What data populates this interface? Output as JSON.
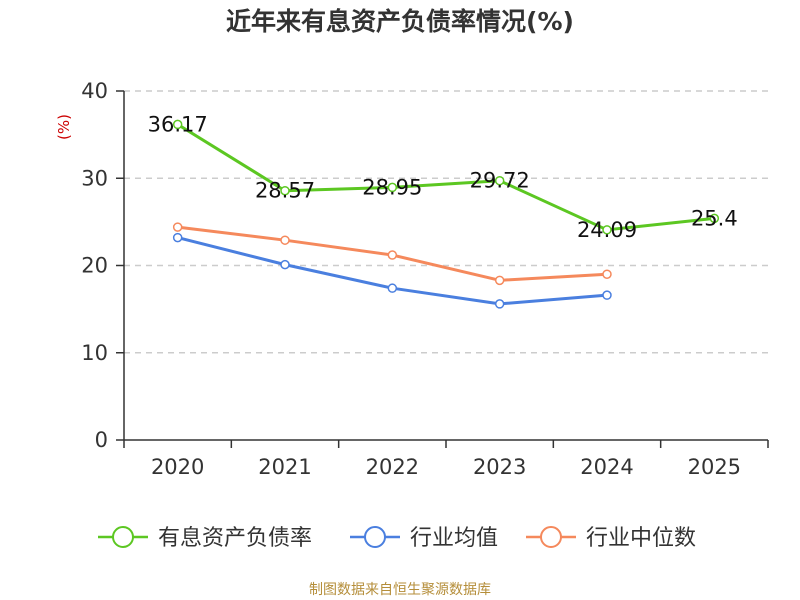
{
  "chart_data": {
    "type": "line",
    "title": "近年来有息资产负债率情况(%)",
    "ylabel": "(%)",
    "xlabel": "",
    "ylim": [
      0,
      40
    ],
    "yticks": [
      0,
      10,
      20,
      30,
      40
    ],
    "categories": [
      "2020",
      "2021",
      "2022",
      "2023",
      "2024",
      "2025"
    ],
    "grid": true,
    "legend_position": "bottom",
    "series": [
      {
        "name": "有息资产负债率",
        "color": "#5cc722",
        "values": [
          36.17,
          28.57,
          28.95,
          29.72,
          24.09,
          25.4
        ],
        "labels": [
          "36.17",
          "28.57",
          "28.95",
          "29.72",
          "24.09",
          "25.4"
        ]
      },
      {
        "name": "行业均值",
        "color": "#4a7fdf",
        "values": [
          23.2,
          20.1,
          17.4,
          15.6,
          16.6,
          null
        ]
      },
      {
        "name": "行业中位数",
        "color": "#f5895c",
        "values": [
          24.4,
          22.9,
          21.2,
          18.3,
          19.0,
          null
        ]
      }
    ],
    "source": "制图数据来自恒生聚源数据库"
  }
}
